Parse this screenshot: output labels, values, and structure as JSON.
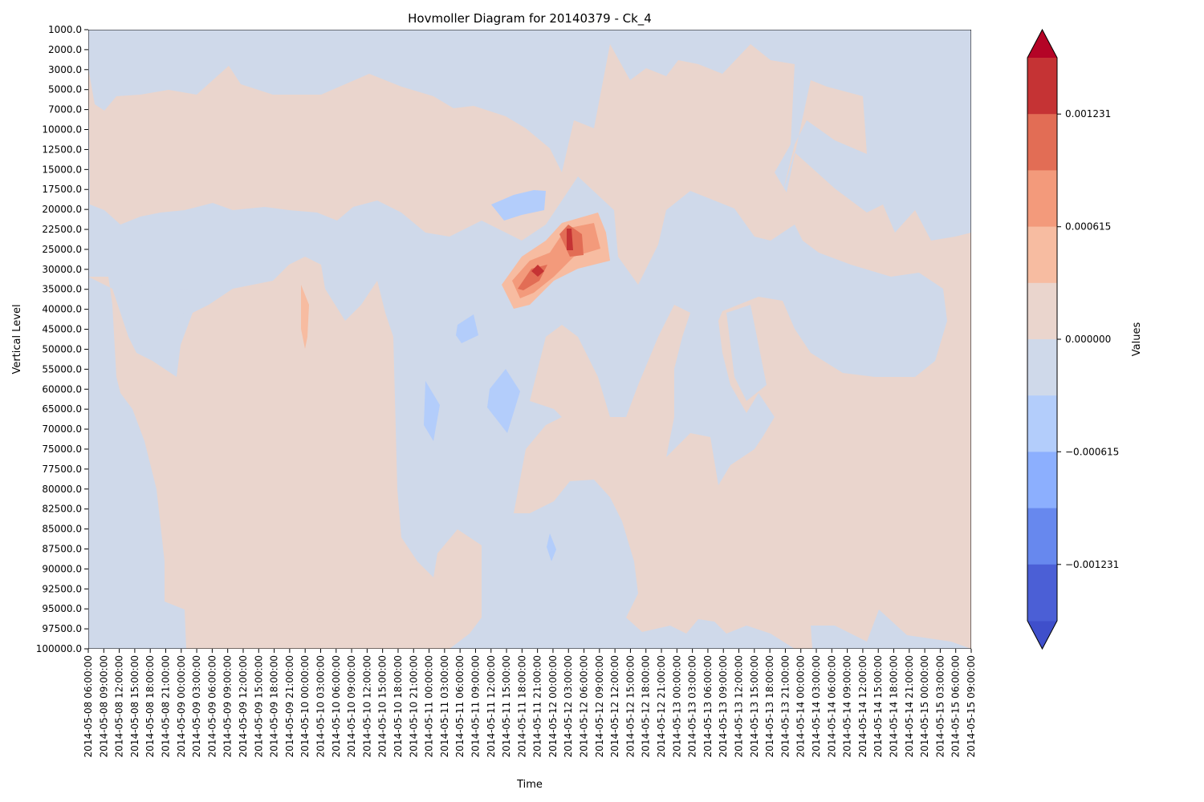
{
  "chart_data": {
    "type": "heatmap",
    "title": "Hovmoller Diagram for 20140379 - Ck_4",
    "xlabel": "Time",
    "ylabel": "Vertical Level",
    "colorbar_label": "Values",
    "y_levels": [
      "1000.0",
      "2000.0",
      "3000.0",
      "5000.0",
      "7000.0",
      "10000.0",
      "12500.0",
      "15000.0",
      "17500.0",
      "20000.0",
      "22500.0",
      "25000.0",
      "30000.0",
      "35000.0",
      "40000.0",
      "45000.0",
      "50000.0",
      "55000.0",
      "60000.0",
      "65000.0",
      "70000.0",
      "75000.0",
      "77500.0",
      "80000.0",
      "82500.0",
      "85000.0",
      "87500.0",
      "90000.0",
      "92500.0",
      "95000.0",
      "97500.0",
      "100000.0"
    ],
    "x_times": [
      "2014-05-08 06:00:00",
      "2014-05-08 09:00:00",
      "2014-05-08 12:00:00",
      "2014-05-08 15:00:00",
      "2014-05-08 18:00:00",
      "2014-05-08 21:00:00",
      "2014-05-09 00:00:00",
      "2014-05-09 03:00:00",
      "2014-05-09 06:00:00",
      "2014-05-09 09:00:00",
      "2014-05-09 12:00:00",
      "2014-05-09 15:00:00",
      "2014-05-09 18:00:00",
      "2014-05-09 21:00:00",
      "2014-05-10 00:00:00",
      "2014-05-10 03:00:00",
      "2014-05-10 06:00:00",
      "2014-05-10 09:00:00",
      "2014-05-10 12:00:00",
      "2014-05-10 15:00:00",
      "2014-05-10 18:00:00",
      "2014-05-10 21:00:00",
      "2014-05-11 00:00:00",
      "2014-05-11 03:00:00",
      "2014-05-11 06:00:00",
      "2014-05-11 09:00:00",
      "2014-05-11 12:00:00",
      "2014-05-11 15:00:00",
      "2014-05-11 18:00:00",
      "2014-05-11 21:00:00",
      "2014-05-12 00:00:00",
      "2014-05-12 03:00:00",
      "2014-05-12 06:00:00",
      "2014-05-12 09:00:00",
      "2014-05-12 12:00:00",
      "2014-05-12 15:00:00",
      "2014-05-12 18:00:00",
      "2014-05-12 21:00:00",
      "2014-05-13 00:00:00",
      "2014-05-13 03:00:00",
      "2014-05-13 06:00:00",
      "2014-05-13 09:00:00",
      "2014-05-13 12:00:00",
      "2014-05-13 15:00:00",
      "2014-05-13 18:00:00",
      "2014-05-13 21:00:00",
      "2014-05-14 00:00:00",
      "2014-05-14 03:00:00",
      "2014-05-14 06:00:00",
      "2014-05-14 09:00:00",
      "2014-05-14 12:00:00",
      "2014-05-14 15:00:00",
      "2014-05-14 18:00:00",
      "2014-05-14 21:00:00",
      "2014-05-15 00:00:00",
      "2014-05-15 03:00:00",
      "2014-05-15 06:00:00",
      "2014-05-15 09:00:00"
    ],
    "colorbar": {
      "bins": [
        {
          "color": "#3f4fcb"
        },
        {
          "color": "#4b5fd6"
        },
        {
          "color": "#6788ee"
        },
        {
          "color": "#8caffe"
        },
        {
          "color": "#b3cdfb"
        },
        {
          "color": "#cfd9ea"
        },
        {
          "color": "#ead5cd"
        },
        {
          "color": "#f7bca1"
        },
        {
          "color": "#f39a7b"
        },
        {
          "color": "#e26d55"
        },
        {
          "color": "#c53334"
        },
        {
          "color": "#b40426"
        }
      ],
      "tick_values": [
        0.001231,
        0.000615,
        0.0,
        -0.000615,
        -0.001231
      ],
      "tick_labels": [
        "0.001231",
        "0.000615",
        "0.000000",
        "−0.000615",
        "−0.001231"
      ],
      "extend": "both"
    },
    "field_regions": [
      {
        "value_class": "positive_weak",
        "description": "broad positive band"
      },
      {
        "value_class": "negative_weak",
        "description": "broad negative background"
      },
      {
        "value_class": "positive_moderate",
        "centre": [
          "2014-05-12 03:00:00",
          "25000.0"
        ]
      },
      {
        "value_class": "positive_strong",
        "centre": [
          "2014-05-11 21:00:00",
          "30000.0"
        ]
      },
      {
        "value_class": "negative_moderate",
        "centre": [
          "2014-05-11 15:00:00",
          "65000.0"
        ]
      }
    ]
  }
}
